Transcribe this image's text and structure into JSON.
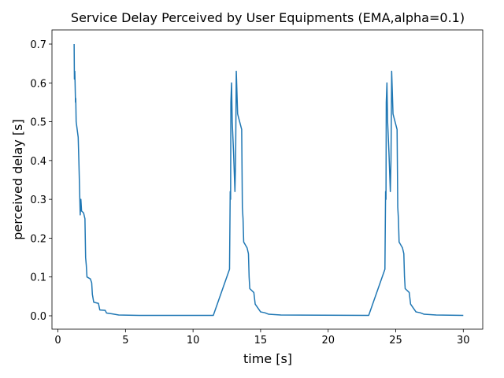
{
  "chart_data": {
    "type": "line",
    "title": "Service Delay Perceived by User Equipments (EMA,alpha=0.1)",
    "x_label": "time [s]",
    "y_label": "perceived delay [s]",
    "series": [
      {
        "color": "#1f77b4",
        "x": [
          1.2,
          1.22,
          1.25,
          1.27,
          1.3,
          1.32,
          1.35,
          1.5,
          1.55,
          1.6,
          1.65,
          1.7,
          1.75,
          1.9,
          2.0,
          2.05,
          2.1,
          2.15,
          2.4,
          2.5,
          2.55,
          2.65,
          3.0,
          3.1,
          3.5,
          3.6,
          4.0,
          4.5,
          6.0,
          11.5,
          12.7,
          12.75,
          12.78,
          12.8,
          12.85,
          12.9,
          13.0,
          13.1,
          13.15,
          13.2,
          13.3,
          13.6,
          13.65,
          13.7,
          13.75,
          14.0,
          14.1,
          14.15,
          14.2,
          14.5,
          14.6,
          15.0,
          15.3,
          15.6,
          16.5,
          23.0,
          24.2,
          24.25,
          24.28,
          24.3,
          24.35,
          24.4,
          24.5,
          24.6,
          24.65,
          24.7,
          24.8,
          25.1,
          25.15,
          25.2,
          25.25,
          25.5,
          25.6,
          25.65,
          25.7,
          26.0,
          26.1,
          26.5,
          26.8,
          27.1,
          28.0,
          30.0
        ],
        "values": [
          0.7,
          0.61,
          0.63,
          0.6,
          0.55,
          0.56,
          0.5,
          0.46,
          0.4,
          0.33,
          0.26,
          0.3,
          0.27,
          0.265,
          0.25,
          0.15,
          0.13,
          0.1,
          0.095,
          0.085,
          0.055,
          0.035,
          0.032,
          0.015,
          0.014,
          0.007,
          0.005,
          0.002,
          0.001,
          0.001,
          0.12,
          0.32,
          0.3,
          0.55,
          0.6,
          0.5,
          0.42,
          0.32,
          0.4,
          0.63,
          0.52,
          0.48,
          0.28,
          0.25,
          0.19,
          0.175,
          0.16,
          0.1,
          0.07,
          0.06,
          0.03,
          0.01,
          0.008,
          0.004,
          0.002,
          0.001,
          0.12,
          0.32,
          0.3,
          0.55,
          0.6,
          0.5,
          0.42,
          0.32,
          0.4,
          0.63,
          0.52,
          0.48,
          0.28,
          0.25,
          0.19,
          0.175,
          0.16,
          0.1,
          0.07,
          0.06,
          0.03,
          0.01,
          0.008,
          0.004,
          0.002,
          0.001
        ]
      }
    ],
    "xlim": [
      -0.44,
      31.44
    ],
    "ylim": [
      -0.0345,
      0.7365
    ],
    "xticks": [
      0,
      5,
      10,
      15,
      20,
      25,
      30
    ],
    "yticks": [
      {
        "value": 0,
        "label": "0.0"
      },
      {
        "value": 0.1,
        "label": "0.1"
      },
      {
        "value": 0.2,
        "label": "0.2"
      },
      {
        "value": 0.3,
        "label": "0.3"
      },
      {
        "value": 0.4,
        "label": "0.4"
      },
      {
        "value": 0.5,
        "label": "0.5"
      },
      {
        "value": 0.6,
        "label": "0.6"
      },
      {
        "value": 0.7,
        "label": "0.7"
      }
    ],
    "grid": false
  }
}
